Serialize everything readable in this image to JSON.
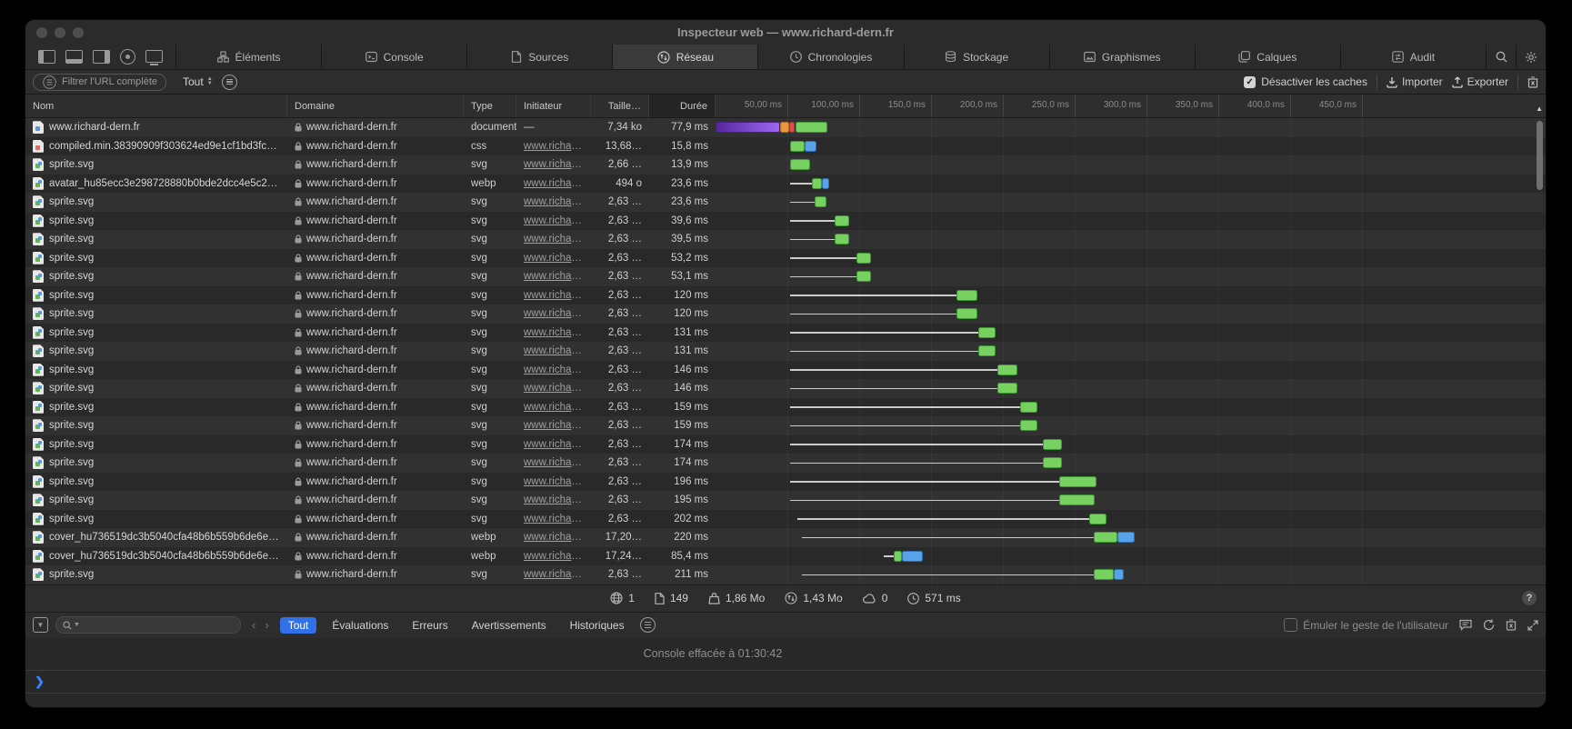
{
  "window": {
    "title": "Inspecteur web — www.richard-dern.fr"
  },
  "tabs": [
    {
      "label": "Éléments"
    },
    {
      "label": "Console"
    },
    {
      "label": "Sources"
    },
    {
      "label": "Réseau",
      "active": true
    },
    {
      "label": "Chronologies"
    },
    {
      "label": "Stockage"
    },
    {
      "label": "Graphismes"
    },
    {
      "label": "Calques"
    },
    {
      "label": "Audit"
    }
  ],
  "network_bar": {
    "filter_placeholder": "Filtrer l'URL complète",
    "type_filter": "Tout",
    "disable_caches_label": "Désactiver les caches",
    "import_label": "Importer",
    "export_label": "Exporter"
  },
  "table": {
    "columns": {
      "name": "Nom",
      "domain": "Domaine",
      "type": "Type",
      "initiator": "Initiateur",
      "size": "Taille…",
      "duration": "Durée"
    }
  },
  "timeline": {
    "ticks": [
      "50,00 ms",
      "100,00 ms",
      "150,0 ms",
      "200,0 ms",
      "250,0 ms",
      "300,0 ms",
      "350,0 ms",
      "400,0 ms",
      "450,0 ms"
    ],
    "tick_interval_ms": 50
  },
  "type_colors": {
    "document": "#4f9be8",
    "css": "#e06a5a",
    "svg": "#5cb848",
    "webp": "#5cb848"
  },
  "bar_colors": {
    "green": "#77d160",
    "blue": "#57a2ea",
    "purple": "#9d68f2",
    "orange": "#e8973c",
    "red": "#dd5144"
  },
  "rows": [
    {
      "name": "www.richard-dern.fr",
      "domain": "www.richard-dern.fr",
      "type": "document",
      "initiator": "—",
      "size": "7,34 ko",
      "duration": "77,9 ms",
      "wf": {
        "segs": [
          [
            "purple",
            0,
            45
          ],
          [
            "orange",
            45,
            51
          ],
          [
            "red",
            51,
            55
          ],
          [
            "green",
            56,
            78
          ]
        ]
      }
    },
    {
      "name": "compiled.min.38390909f303624ed9e1cf1bd3fc71e…",
      "domain": "www.richard-dern.fr",
      "type": "css",
      "initiator": "www.richard-d…",
      "size": "13,68…",
      "duration": "15,8 ms",
      "wf": {
        "segs": [
          [
            "green",
            52,
            62
          ],
          [
            "blue",
            62,
            70
          ]
        ]
      }
    },
    {
      "name": "sprite.svg",
      "domain": "www.richard-dern.fr",
      "type": "svg",
      "initiator": "www.richard-d…",
      "size": "2,66 …",
      "duration": "13,9 ms",
      "wf": {
        "segs": [
          [
            "green",
            52,
            66
          ]
        ]
      }
    },
    {
      "name": "avatar_hu85ecc3e298728880b0bde2dcc4e5c230_…",
      "domain": "www.richard-dern.fr",
      "type": "webp",
      "initiator": "www.richard-d…",
      "size": "494 o",
      "duration": "23,6 ms",
      "wf": {
        "line": [
          52,
          67
        ],
        "segs": [
          [
            "green",
            67,
            74
          ],
          [
            "blue",
            74,
            79
          ]
        ]
      }
    },
    {
      "name": "sprite.svg",
      "domain": "www.richard-dern.fr",
      "type": "svg",
      "initiator": "www.richard-d…",
      "size": "2,63 …",
      "duration": "23,6 ms",
      "wf": {
        "line": [
          52,
          69
        ],
        "segs": [
          [
            "green",
            69,
            77
          ]
        ]
      }
    },
    {
      "name": "sprite.svg",
      "domain": "www.richard-dern.fr",
      "type": "svg",
      "initiator": "www.richard-d…",
      "size": "2,63 …",
      "duration": "39,6 ms",
      "wf": {
        "line": [
          52,
          83
        ],
        "segs": [
          [
            "green",
            83,
            93
          ]
        ]
      }
    },
    {
      "name": "sprite.svg",
      "domain": "www.richard-dern.fr",
      "type": "svg",
      "initiator": "www.richard-d…",
      "size": "2,63 …",
      "duration": "39,5 ms",
      "wf": {
        "line": [
          52,
          83
        ],
        "segs": [
          [
            "green",
            83,
            93
          ]
        ]
      }
    },
    {
      "name": "sprite.svg",
      "domain": "www.richard-dern.fr",
      "type": "svg",
      "initiator": "www.richard-d…",
      "size": "2,63 …",
      "duration": "53,2 ms",
      "wf": {
        "line": [
          52,
          98
        ],
        "segs": [
          [
            "green",
            98,
            108
          ]
        ]
      }
    },
    {
      "name": "sprite.svg",
      "domain": "www.richard-dern.fr",
      "type": "svg",
      "initiator": "www.richard-d…",
      "size": "2,63 …",
      "duration": "53,1 ms",
      "wf": {
        "line": [
          52,
          98
        ],
        "segs": [
          [
            "green",
            98,
            108
          ]
        ]
      }
    },
    {
      "name": "sprite.svg",
      "domain": "www.richard-dern.fr",
      "type": "svg",
      "initiator": "www.richard-d…",
      "size": "2,63 …",
      "duration": "120 ms",
      "wf": {
        "line": [
          52,
          168
        ],
        "segs": [
          [
            "green",
            168,
            182
          ]
        ]
      }
    },
    {
      "name": "sprite.svg",
      "domain": "www.richard-dern.fr",
      "type": "svg",
      "initiator": "www.richard-d…",
      "size": "2,63 …",
      "duration": "120 ms",
      "wf": {
        "line": [
          52,
          168
        ],
        "segs": [
          [
            "green",
            168,
            182
          ]
        ]
      }
    },
    {
      "name": "sprite.svg",
      "domain": "www.richard-dern.fr",
      "type": "svg",
      "initiator": "www.richard-d…",
      "size": "2,63 …",
      "duration": "131 ms",
      "wf": {
        "line": [
          52,
          183
        ],
        "segs": [
          [
            "green",
            183,
            195
          ]
        ]
      }
    },
    {
      "name": "sprite.svg",
      "domain": "www.richard-dern.fr",
      "type": "svg",
      "initiator": "www.richard-d…",
      "size": "2,63 …",
      "duration": "131 ms",
      "wf": {
        "line": [
          52,
          183
        ],
        "segs": [
          [
            "green",
            183,
            195
          ]
        ]
      }
    },
    {
      "name": "sprite.svg",
      "domain": "www.richard-dern.fr",
      "type": "svg",
      "initiator": "www.richard-d…",
      "size": "2,63 …",
      "duration": "146 ms",
      "wf": {
        "line": [
          52,
          196
        ],
        "segs": [
          [
            "green",
            196,
            210
          ]
        ]
      }
    },
    {
      "name": "sprite.svg",
      "domain": "www.richard-dern.fr",
      "type": "svg",
      "initiator": "www.richard-d…",
      "size": "2,63 …",
      "duration": "146 ms",
      "wf": {
        "line": [
          52,
          196
        ],
        "segs": [
          [
            "green",
            196,
            210
          ]
        ]
      }
    },
    {
      "name": "sprite.svg",
      "domain": "www.richard-dern.fr",
      "type": "svg",
      "initiator": "www.richard-d…",
      "size": "2,63 …",
      "duration": "159 ms",
      "wf": {
        "line": [
          52,
          212
        ],
        "segs": [
          [
            "green",
            212,
            224
          ]
        ]
      }
    },
    {
      "name": "sprite.svg",
      "domain": "www.richard-dern.fr",
      "type": "svg",
      "initiator": "www.richard-d…",
      "size": "2,63 …",
      "duration": "159 ms",
      "wf": {
        "line": [
          52,
          212
        ],
        "segs": [
          [
            "green",
            212,
            224
          ]
        ]
      }
    },
    {
      "name": "sprite.svg",
      "domain": "www.richard-dern.fr",
      "type": "svg",
      "initiator": "www.richard-d…",
      "size": "2,63 …",
      "duration": "174 ms",
      "wf": {
        "line": [
          52,
          228
        ],
        "segs": [
          [
            "green",
            228,
            241
          ]
        ]
      }
    },
    {
      "name": "sprite.svg",
      "domain": "www.richard-dern.fr",
      "type": "svg",
      "initiator": "www.richard-d…",
      "size": "2,63 …",
      "duration": "174 ms",
      "wf": {
        "line": [
          52,
          228
        ],
        "segs": [
          [
            "green",
            228,
            241
          ]
        ]
      }
    },
    {
      "name": "sprite.svg",
      "domain": "www.richard-dern.fr",
      "type": "svg",
      "initiator": "www.richard-d…",
      "size": "2,63 …",
      "duration": "196 ms",
      "wf": {
        "line": [
          52,
          239
        ],
        "segs": [
          [
            "green",
            239,
            265
          ]
        ]
      }
    },
    {
      "name": "sprite.svg",
      "domain": "www.richard-dern.fr",
      "type": "svg",
      "initiator": "www.richard-d…",
      "size": "2,63 …",
      "duration": "195 ms",
      "wf": {
        "line": [
          52,
          239
        ],
        "segs": [
          [
            "green",
            239,
            264
          ]
        ]
      }
    },
    {
      "name": "sprite.svg",
      "domain": "www.richard-dern.fr",
      "type": "svg",
      "initiator": "www.richard-d…",
      "size": "2,63 …",
      "duration": "202 ms",
      "wf": {
        "line": [
          57,
          260
        ],
        "segs": [
          [
            "green",
            260,
            272
          ]
        ]
      }
    },
    {
      "name": "cover_hu736519dc3b5040cfa48b6b559b6de6ec_1…",
      "domain": "www.richard-dern.fr",
      "type": "webp",
      "initiator": "www.richard-d…",
      "size": "17,20…",
      "duration": "220 ms",
      "wf": {
        "line": [
          60,
          263
        ],
        "segs": [
          [
            "green",
            263,
            280
          ],
          [
            "blue",
            280,
            292
          ]
        ]
      }
    },
    {
      "name": "cover_hu736519dc3b5040cfa48b6b559b6de6ec_1…",
      "domain": "www.richard-dern.fr",
      "type": "webp",
      "initiator": "www.richard-d…",
      "size": "17,24…",
      "duration": "85,4 ms",
      "wf": {
        "line": [
          117,
          124
        ],
        "segs": [
          [
            "green",
            124,
            130
          ],
          [
            "blue",
            130,
            144
          ]
        ]
      }
    },
    {
      "name": "sprite.svg",
      "domain": "www.richard-dern.fr",
      "type": "svg",
      "initiator": "www.richard-d…",
      "size": "2,63 …",
      "duration": "211 ms",
      "wf": {
        "line": [
          60,
          263
        ],
        "segs": [
          [
            "green",
            263,
            277
          ],
          [
            "blue",
            277,
            284
          ]
        ]
      }
    }
  ],
  "summary": {
    "domains": "1",
    "resources": "149",
    "total_size": "1,86 Mo",
    "transferred": "1,43 Mo",
    "cached": "0",
    "load_time": "571 ms"
  },
  "console_bar": {
    "filters": [
      "Tout",
      "Évaluations",
      "Erreurs",
      "Avertissements",
      "Historiques"
    ],
    "active_filter": "Tout",
    "emulate_label": "Émuler le geste de l'utilisateur"
  },
  "console": {
    "message": "Console effacée à 01:30:42"
  }
}
